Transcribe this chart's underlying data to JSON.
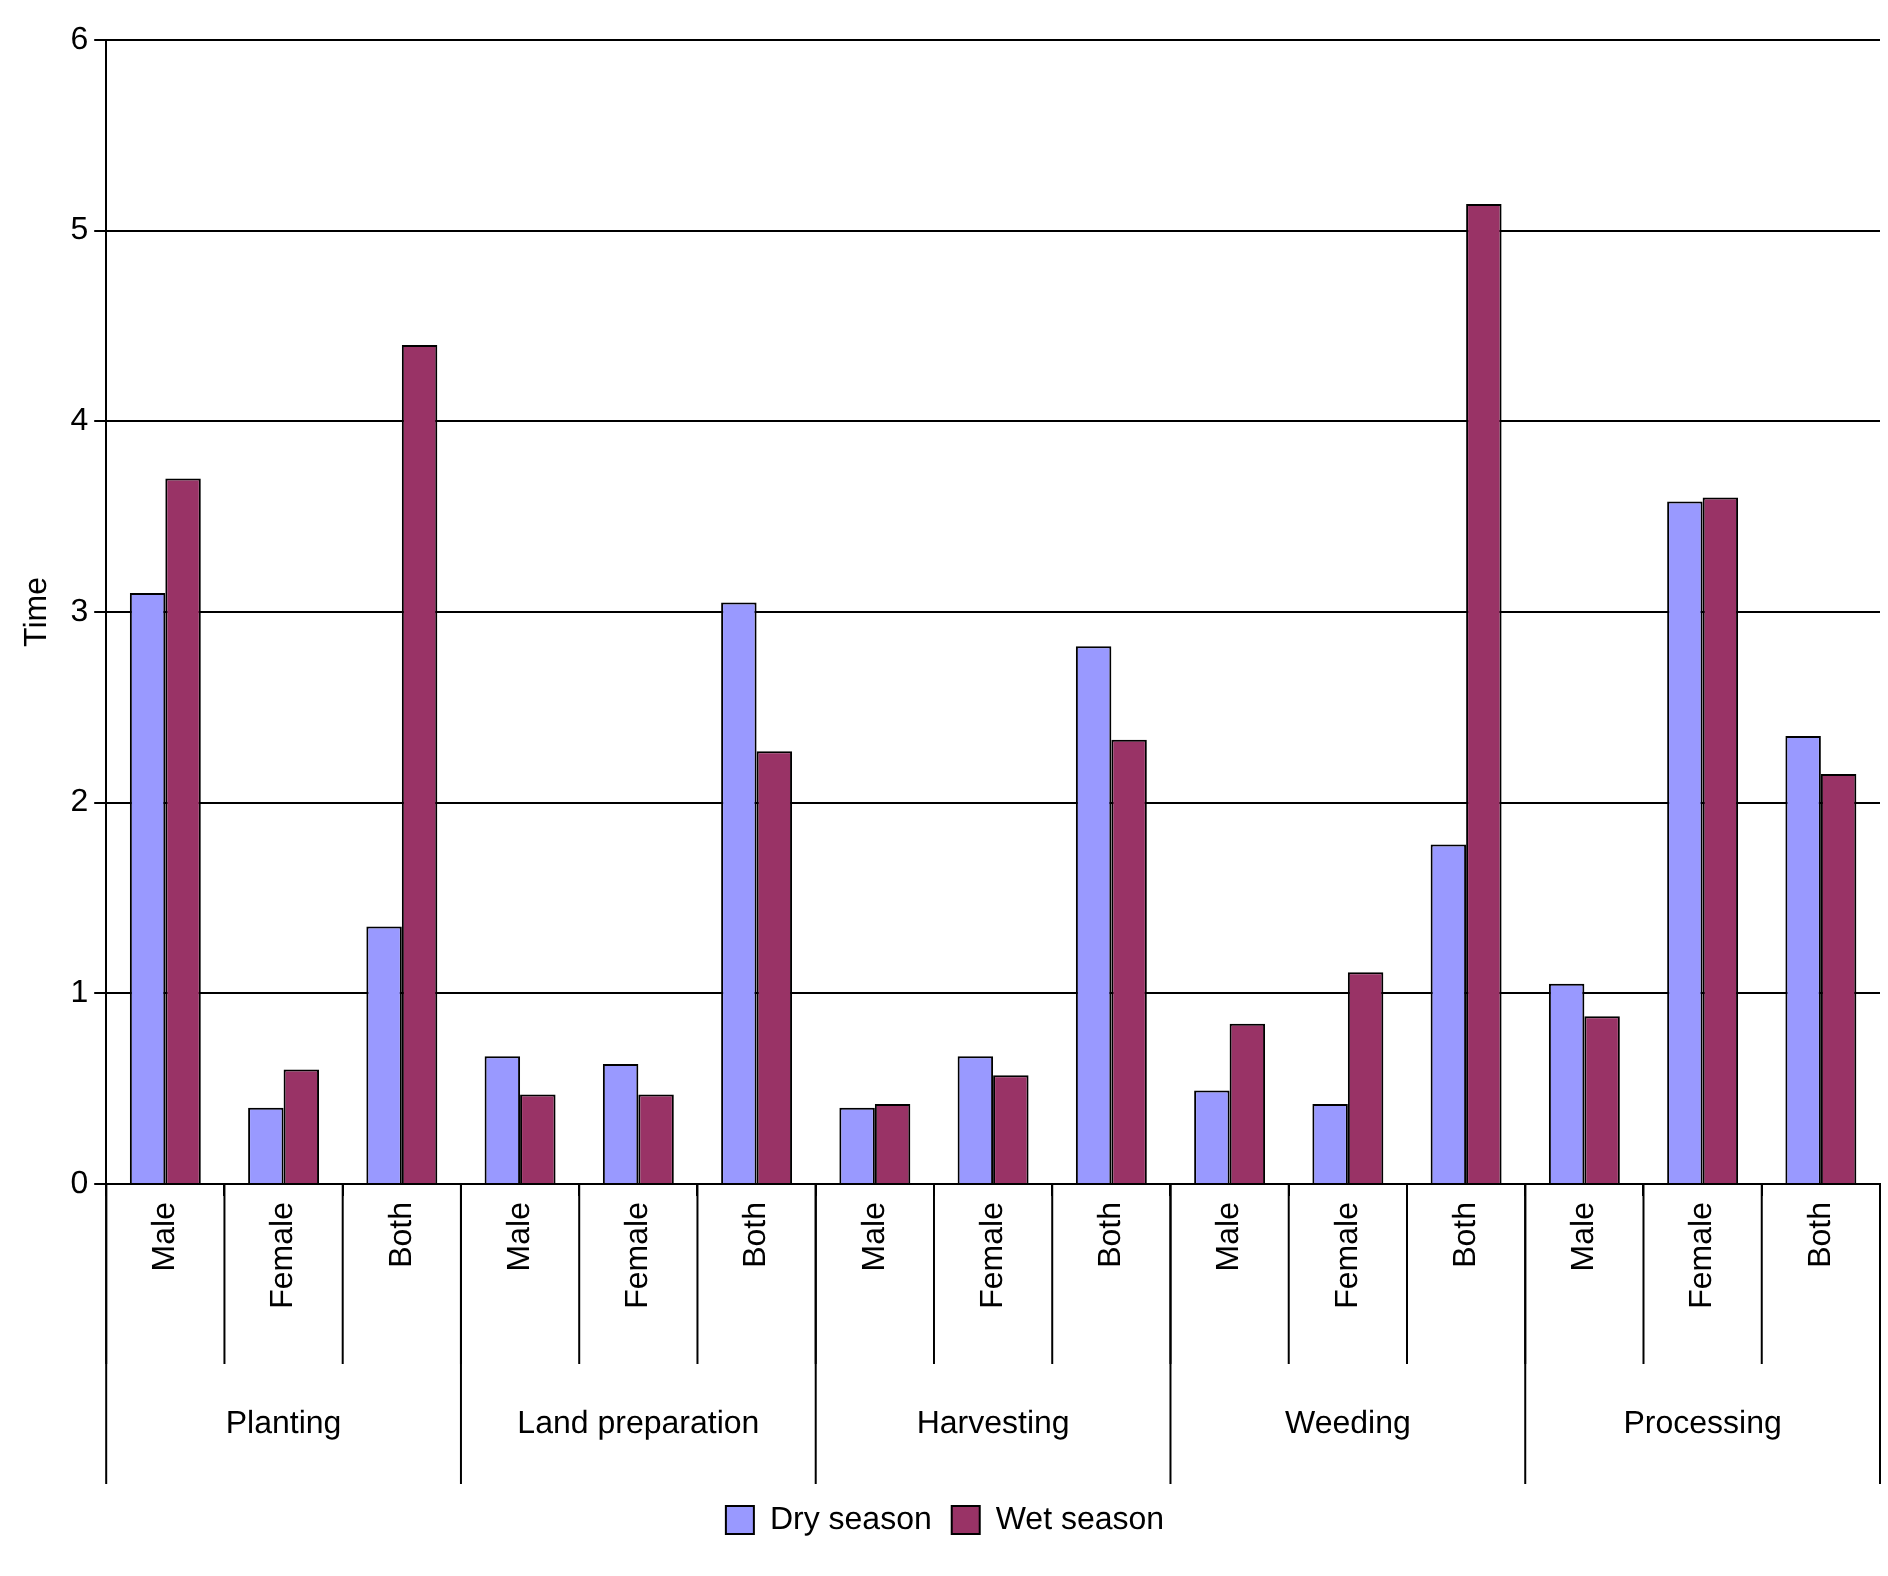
{
  "chart_data": {
    "type": "bar",
    "ylabel": "Time",
    "categories": [
      "Male",
      "Female",
      "Both",
      "Male",
      "Female",
      "Both",
      "Male",
      "Female",
      "Both",
      "Male",
      "Female",
      "Both",
      "Male",
      "Female",
      "Both"
    ],
    "series": [
      {
        "name": "Dry season",
        "color": "#9999ff",
        "values": [
          3.1,
          0.4,
          1.35,
          0.67,
          0.63,
          3.05,
          0.4,
          0.67,
          2.82,
          0.49,
          0.42,
          1.78,
          1.05,
          3.58,
          2.35
        ]
      },
      {
        "name": "Wet season",
        "color": "#993366",
        "values": [
          3.7,
          0.6,
          4.4,
          0.47,
          0.47,
          2.27,
          0.42,
          0.57,
          2.33,
          0.84,
          1.11,
          5.14,
          0.88,
          3.6,
          2.15
        ]
      }
    ],
    "annotations": [
      "Planting",
      "Land preparation",
      "Harvesting",
      "Weeding",
      "Processing"
    ],
    "ylim": [
      0,
      6
    ],
    "yticks": [
      0,
      1,
      2,
      3,
      4,
      5,
      6
    ],
    "grid": "y",
    "legend": "bottom"
  }
}
